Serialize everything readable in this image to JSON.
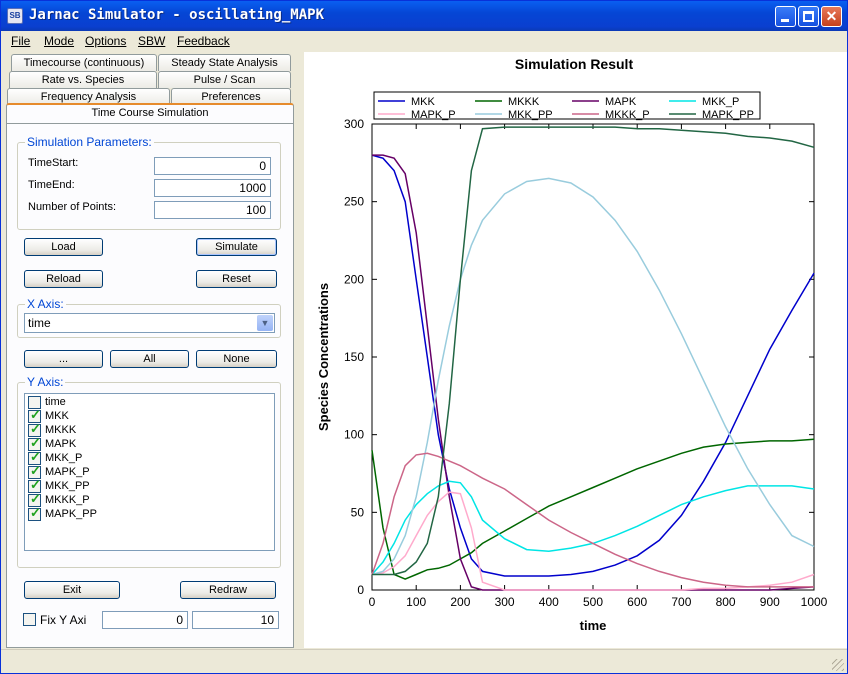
{
  "window": {
    "title": "Jarnac Simulator - oscillating_MAPK",
    "icon": "app-icon"
  },
  "menu": [
    "File",
    "Mode",
    "Options",
    "SBW",
    "Feedback"
  ],
  "tabs": {
    "row1": [
      "Timecourse (continuous)",
      "Steady State Analysis"
    ],
    "row2": [
      "Rate vs. Species",
      "Pulse / Scan"
    ],
    "row3": [
      "Frequency Analysis",
      "Preferences"
    ],
    "active": "Time Course Simulation"
  },
  "sim_params": {
    "group_label": "Simulation Parameters:",
    "time_start_label": "TimeStart:",
    "time_start": "0",
    "time_end_label": "TimeEnd:",
    "time_end": "1000",
    "num_points_label": "Number of Points:",
    "num_points": "100"
  },
  "buttons": {
    "load": "Load",
    "simulate": "Simulate",
    "reload": "Reload",
    "reset": "Reset",
    "dots": "...",
    "all": "All",
    "none": "None",
    "exit": "Exit",
    "redraw": "Redraw"
  },
  "x_axis": {
    "group_label": "X Axis:",
    "selected": "time"
  },
  "y_axis": {
    "group_label": "Y Axis:",
    "items": [
      {
        "label": "time",
        "checked": false
      },
      {
        "label": "MKK",
        "checked": true
      },
      {
        "label": "MKKK",
        "checked": true
      },
      {
        "label": "MAPK",
        "checked": true
      },
      {
        "label": "MKK_P",
        "checked": true
      },
      {
        "label": "MAPK_P",
        "checked": true
      },
      {
        "label": "MKK_PP",
        "checked": true
      },
      {
        "label": "MKKK_P",
        "checked": true
      },
      {
        "label": "MAPK_PP",
        "checked": true
      }
    ]
  },
  "fix_y": {
    "label": "Fix Y Axi",
    "checked": false,
    "min": "0",
    "max": "10"
  },
  "chart_data": {
    "type": "line",
    "title": "Simulation Result",
    "xlabel": "time",
    "ylabel": "Species Concentrations",
    "xlim": [
      0,
      1000
    ],
    "ylim": [
      0,
      300
    ],
    "xticks": [
      0,
      100,
      200,
      300,
      400,
      500,
      600,
      700,
      800,
      900,
      1000
    ],
    "yticks": [
      0,
      50,
      100,
      150,
      200,
      250,
      300
    ],
    "legend_position": "top",
    "x": [
      0,
      25,
      50,
      75,
      100,
      125,
      150,
      175,
      200,
      225,
      250,
      300,
      350,
      400,
      450,
      500,
      550,
      600,
      650,
      700,
      750,
      800,
      850,
      900,
      950,
      1000
    ],
    "series": [
      {
        "name": "MKK",
        "color": "#0000cc",
        "values": [
          280,
          278,
          270,
          250,
          200,
          150,
          100,
          65,
          40,
          20,
          12,
          9,
          9,
          9,
          10,
          12,
          16,
          22,
          32,
          48,
          70,
          95,
          125,
          155,
          180,
          204
        ]
      },
      {
        "name": "MKKK",
        "color": "#006600",
        "values": [
          90,
          40,
          10,
          7,
          10,
          13,
          14,
          16,
          20,
          24,
          30,
          38,
          46,
          54,
          60,
          66,
          72,
          78,
          83,
          88,
          92,
          94,
          95,
          96,
          96,
          97
        ]
      },
      {
        "name": "MAPK",
        "color": "#660066",
        "values": [
          280,
          280,
          278,
          268,
          230,
          170,
          110,
          60,
          20,
          2,
          0,
          0,
          0,
          0,
          0,
          0,
          0,
          0,
          0,
          0,
          0,
          0,
          0,
          0,
          1,
          2
        ]
      },
      {
        "name": "MKK_P",
        "color": "#00e5e5",
        "values": [
          10,
          18,
          30,
          45,
          55,
          62,
          67,
          70,
          69,
          60,
          45,
          33,
          26,
          25,
          27,
          30,
          35,
          41,
          48,
          55,
          60,
          64,
          67,
          67,
          67,
          65
        ]
      },
      {
        "name": "MAPK_P",
        "color": "#ffaacc",
        "values": [
          10,
          11,
          15,
          22,
          35,
          48,
          57,
          63,
          62,
          40,
          5,
          0,
          0,
          0,
          0,
          0,
          0,
          0,
          0,
          0,
          1,
          1,
          2,
          3,
          5,
          10
        ]
      },
      {
        "name": "MKK_PP",
        "color": "#99ccdd",
        "values": [
          10,
          12,
          20,
          35,
          60,
          95,
          135,
          170,
          200,
          222,
          238,
          255,
          263,
          265,
          262,
          253,
          238,
          218,
          193,
          165,
          135,
          105,
          78,
          55,
          35,
          28
        ]
      },
      {
        "name": "MKKK_P",
        "color": "#cc6688",
        "values": [
          10,
          30,
          60,
          80,
          87,
          88,
          86,
          83,
          80,
          76,
          72,
          65,
          55,
          45,
          37,
          30,
          23,
          17,
          12,
          8,
          5,
          3,
          2,
          2,
          2,
          2
        ]
      },
      {
        "name": "MAPK_PP",
        "color": "#226644",
        "values": [
          10,
          10,
          10,
          12,
          18,
          30,
          60,
          120,
          200,
          270,
          297,
          298,
          298,
          298,
          298,
          298,
          298,
          297,
          297,
          296,
          295,
          294,
          292,
          291,
          289,
          285
        ]
      }
    ]
  }
}
